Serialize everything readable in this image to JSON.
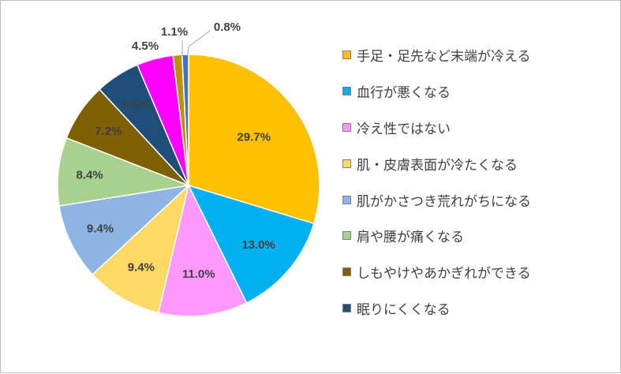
{
  "chart_data": {
    "type": "pie",
    "start_angle_deg": 0,
    "direction": "clockwise",
    "slices": [
      {
        "label": "手足・足先など末端が冷える",
        "value": 29.7,
        "value_label": "29.7%",
        "color": "#FFC000",
        "in_legend": true
      },
      {
        "label": "血行が悪くなる",
        "value": 13.0,
        "value_label": "13.0%",
        "color": "#00B0F0",
        "in_legend": true
      },
      {
        "label": "冷え性ではない",
        "value": 11.0,
        "value_label": "11.0%",
        "color": "#FF99FF",
        "in_legend": true
      },
      {
        "label": "肌・皮膚表面が冷たくなる",
        "value": 9.4,
        "value_label": "9.4%",
        "color": "#FFD966",
        "in_legend": true
      },
      {
        "label": "肌がかさつき荒れがちになる",
        "value": 9.4,
        "value_label": "9.4%",
        "color": "#8DB4E2",
        "in_legend": true
      },
      {
        "label": "肩や腰が痛くなる",
        "value": 8.4,
        "value_label": "8.4%",
        "color": "#A9D18E",
        "in_legend": true
      },
      {
        "label": "しもやけやあかぎれができる",
        "value": 7.2,
        "value_label": "7.2%",
        "color": "#7F6000",
        "in_legend": true
      },
      {
        "label": "眠りにくくなる",
        "value": 5.5,
        "value_label": "5.5%",
        "color": "#1F4E79",
        "in_legend": true
      },
      {
        "label": "",
        "value": 4.5,
        "value_label": "4.5%",
        "color": "#FF00FF",
        "in_legend": false
      },
      {
        "label": "",
        "value": 1.1,
        "value_label": "1.1%",
        "color": "#C09000",
        "in_legend": false
      },
      {
        "label": "",
        "value": 0.8,
        "value_label": "0.8%",
        "color": "#4472C4",
        "in_legend": false
      }
    ],
    "legend_position": "right"
  }
}
